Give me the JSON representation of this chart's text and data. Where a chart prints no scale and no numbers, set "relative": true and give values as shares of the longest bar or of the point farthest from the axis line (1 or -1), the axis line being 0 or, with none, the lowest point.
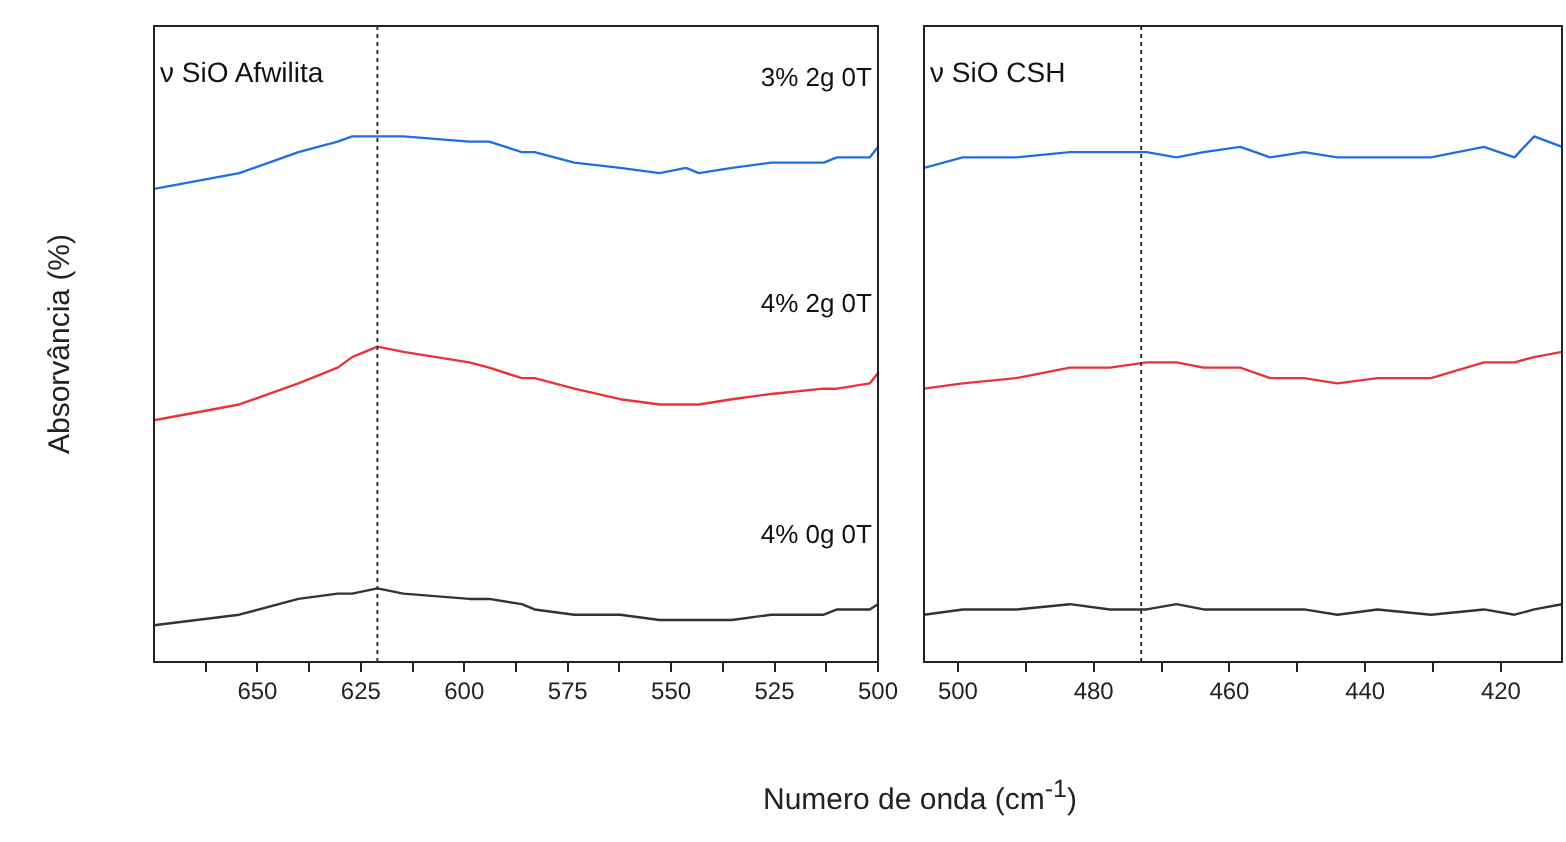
{
  "chart_data": [
    {
      "type": "line",
      "ylabel": "Absorvância (%)",
      "xlabel": "Numero de onda (cm$^{-1}$)",
      "relative": true,
      "tick_labels": "x",
      "grid": false,
      "legend": false,
      "marker": "none",
      "line_style": "solid",
      "annotations": [
        "ν SiO Afwilita"
      ],
      "xlim": [
        675,
        500
      ],
      "xticks": [
        {
          "value": 662.5,
          "label": null
        },
        650,
        {
          "value": 637.5,
          "label": null
        },
        625,
        {
          "value": 612.5,
          "label": null
        },
        600,
        {
          "value": 587.5,
          "label": null
        },
        575,
        {
          "value": 562.5,
          "label": null
        },
        550,
        {
          "value": 537.5,
          "label": null
        },
        525,
        {
          "value": 512.5,
          "label": null
        },
        500
      ],
      "ref_lines": [
        {
          "axis": "x",
          "value": 621,
          "label": null,
          "color": "#333333",
          "line_style": "dotted"
        }
      ],
      "x": [
        675,
        654.4,
        640.1,
        630.6,
        627.1,
        621,
        614.7,
        598.8,
        594,
        586.1,
        583,
        573.4,
        562.3,
        552.8,
        546.4,
        543.3,
        535.3,
        525.8,
        513.1,
        509.9,
        502,
        500
      ],
      "series": [
        {
          "name": "3% 2g 0T",
          "color": "#1f6fe0",
          "values": [
            0.9,
            0.93,
            0.97,
            0.99,
            1.0,
            1.0,
            1.0,
            0.99,
            0.99,
            0.97,
            0.97,
            0.95,
            0.94,
            0.93,
            0.94,
            0.93,
            0.94,
            0.95,
            0.95,
            0.96,
            0.96,
            0.98
          ]
        },
        {
          "name": "4% 2g 0T",
          "color": "#e8333a",
          "values": [
            0.46,
            0.49,
            0.53,
            0.56,
            0.58,
            0.6,
            0.59,
            0.57,
            0.56,
            0.54,
            0.54,
            0.52,
            0.5,
            0.49,
            0.49,
            0.49,
            0.5,
            0.51,
            0.52,
            0.52,
            0.53,
            0.55
          ]
        },
        {
          "name": "4% 0g 0T",
          "color": "#333333",
          "values": [
            0.07,
            0.09,
            0.12,
            0.13,
            0.13,
            0.14,
            0.13,
            0.12,
            0.12,
            0.11,
            0.1,
            0.09,
            0.09,
            0.08,
            0.08,
            0.08,
            0.08,
            0.09,
            0.09,
            0.1,
            0.1,
            0.11
          ]
        }
      ]
    },
    {
      "type": "line",
      "relative": true,
      "tick_labels": "x",
      "grid": false,
      "legend": false,
      "marker": "none",
      "line_style": "solid",
      "annotations": [
        "ν SiO CSH"
      ],
      "xlim": [
        505,
        411
      ],
      "xticks": [
        500,
        {
          "value": 490,
          "label": null
        },
        480,
        {
          "value": 470,
          "label": null
        },
        460,
        {
          "value": 450,
          "label": null
        },
        440,
        {
          "value": 430,
          "label": null
        },
        420
      ],
      "ref_lines": [
        {
          "axis": "x",
          "value": 473,
          "label": null,
          "color": "#333333",
          "line_style": "dotted"
        }
      ],
      "x": [
        505,
        499.3,
        491.4,
        483.5,
        477.6,
        472.2,
        467.8,
        463.8,
        458.4,
        454,
        449,
        444.1,
        438.2,
        430.3,
        422.5,
        418,
        415.1,
        411
      ],
      "series": [
        {
          "color": "#1f6fe0",
          "values": [
            0.94,
            0.96,
            0.96,
            0.97,
            0.97,
            0.97,
            0.96,
            0.97,
            0.98,
            0.96,
            0.97,
            0.96,
            0.96,
            0.96,
            0.98,
            0.96,
            1.0,
            0.98
          ]
        },
        {
          "color": "#e8333a",
          "values": [
            0.52,
            0.53,
            0.54,
            0.56,
            0.56,
            0.57,
            0.57,
            0.56,
            0.56,
            0.54,
            0.54,
            0.53,
            0.54,
            0.54,
            0.57,
            0.57,
            0.58,
            0.59
          ]
        },
        {
          "color": "#333333",
          "values": [
            0.09,
            0.1,
            0.1,
            0.11,
            0.1,
            0.1,
            0.11,
            0.1,
            0.1,
            0.1,
            0.1,
            0.09,
            0.1,
            0.09,
            0.1,
            0.09,
            0.1,
            0.11
          ]
        }
      ]
    }
  ]
}
